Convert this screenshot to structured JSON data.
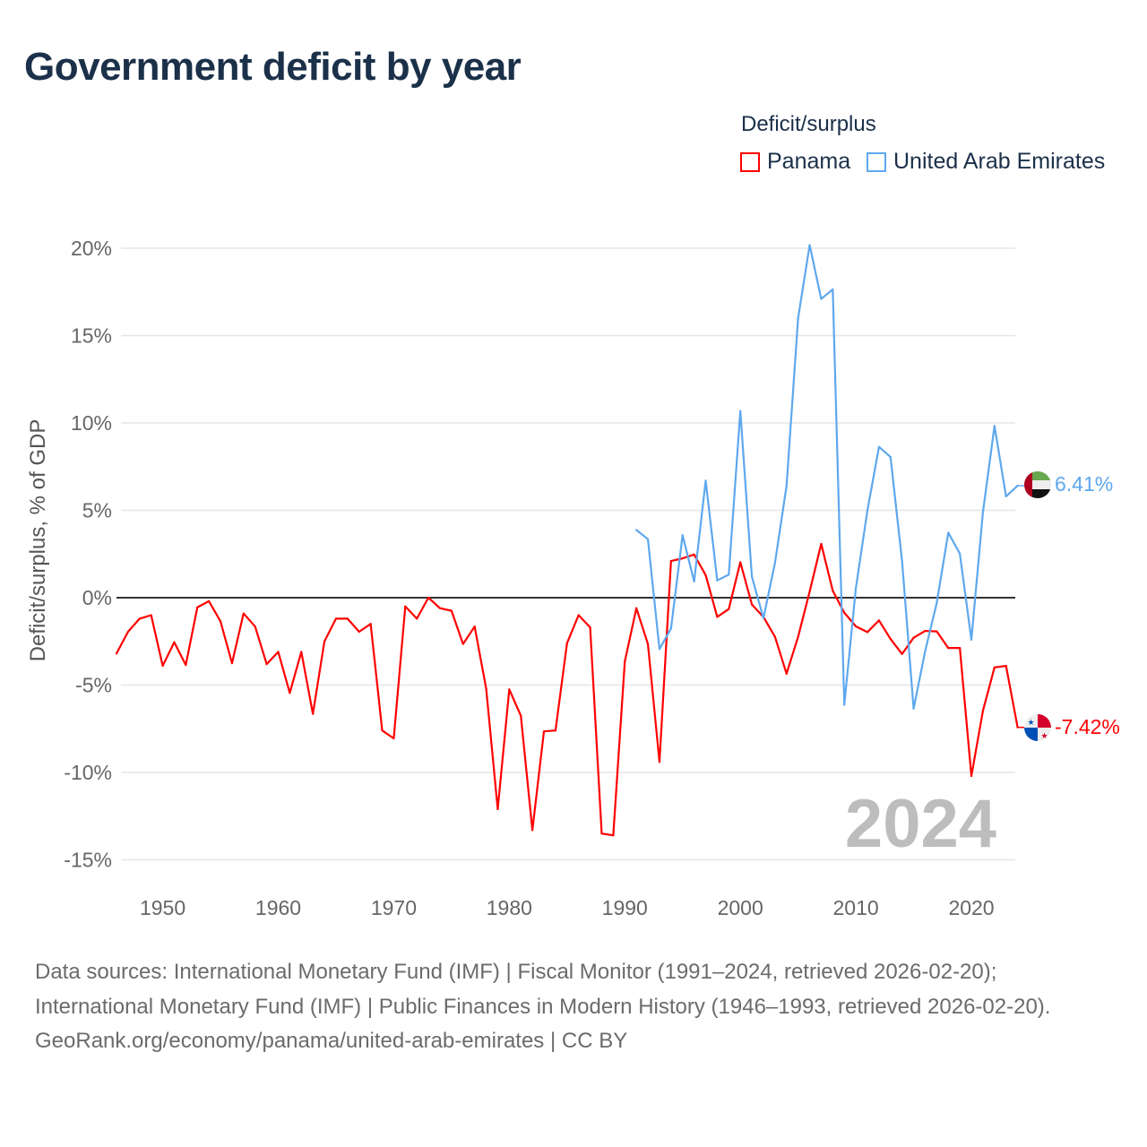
{
  "title": "Government deficit by year",
  "legend": {
    "title": "Deficit/surplus",
    "items": [
      {
        "label": "Panama",
        "color": "#ff0000"
      },
      {
        "label": "United Arab Emirates",
        "color": "#5ea8ee"
      }
    ]
  },
  "watermark_year": "2024",
  "end_labels": {
    "panama": "-7.42%",
    "uae": "6.41%"
  },
  "footer": {
    "sources": "Data sources: International Monetary Fund (IMF) | Fiscal Monitor (1991–2024, retrieved 2026-02-20); International Monetary Fund (IMF) | Public Finances in Modern History (1946–1993, retrieved 2026-02-20).",
    "credit": "GeoRank.org/economy/panama/united-arab-emirates | CC BY"
  },
  "chart_data": {
    "type": "line",
    "title": "Government deficit by year",
    "xlabel": "",
    "ylabel": "Deficit/surplus, % of GDP",
    "xlim": [
      1946,
      2024
    ],
    "ylim": [
      -16,
      20.5
    ],
    "x_ticks": [
      1950,
      1960,
      1970,
      1980,
      1990,
      2000,
      2010,
      2020
    ],
    "x_tick_labels": [
      "1950",
      "1960",
      "1970",
      "1980",
      "1990",
      "2000",
      "2010",
      "2020"
    ],
    "y_ticks": [
      20,
      15,
      10,
      5,
      0,
      -5,
      -10,
      -15
    ],
    "y_tick_labels": [
      "20%",
      "15%",
      "10%",
      "5%",
      "0%",
      "-5%",
      "-10%",
      "-15%"
    ],
    "grid": true,
    "legend_position": "top-right",
    "series": [
      {
        "name": "Panama",
        "color": "#ff0000",
        "start_year": 1946,
        "values": [
          -3.2,
          -1.95,
          -1.2,
          -1.0,
          -3.9,
          -2.55,
          -3.85,
          -0.55,
          -0.2,
          -1.35,
          -3.75,
          -0.9,
          -1.65,
          -3.8,
          -3.1,
          -5.45,
          -3.1,
          -6.65,
          -2.5,
          -1.2,
          -1.2,
          -1.95,
          -1.5,
          -7.6,
          -8.05,
          -0.5,
          -1.2,
          0.0,
          -0.6,
          -0.75,
          -2.65,
          -1.65,
          -5.2,
          -12.1,
          -5.25,
          -6.75,
          -13.3,
          -7.65,
          -7.6,
          -2.6,
          -1.0,
          -1.7,
          -13.5,
          -13.6,
          -3.65,
          -0.6,
          -2.65,
          -9.4,
          2.1,
          2.25,
          2.47,
          1.29,
          -1.1,
          -0.65,
          2.03,
          -0.39,
          -1.1,
          -2.24,
          -4.35,
          -2.24,
          0.35,
          3.08,
          0.4,
          -0.86,
          -1.64,
          -1.97,
          -1.3,
          -2.36,
          -3.22,
          -2.29,
          -1.9,
          -1.93,
          -2.88,
          -2.88,
          -10.2,
          -6.47,
          -3.99,
          -3.9,
          -7.42
        ]
      },
      {
        "name": "United Arab Emirates",
        "color": "#5ea8ee",
        "start_year": 1991,
        "values": [
          3.88,
          3.35,
          -2.94,
          -1.76,
          3.58,
          0.93,
          6.7,
          0.99,
          1.32,
          10.68,
          1.2,
          -1.18,
          2.0,
          6.4,
          16.0,
          20.18,
          17.1,
          17.64,
          -6.13,
          0.55,
          5.0,
          8.63,
          8.05,
          2.09,
          -6.35,
          -3.05,
          -0.3,
          3.72,
          2.52,
          -2.4,
          4.9,
          9.83,
          5.8,
          6.41
        ]
      }
    ]
  }
}
